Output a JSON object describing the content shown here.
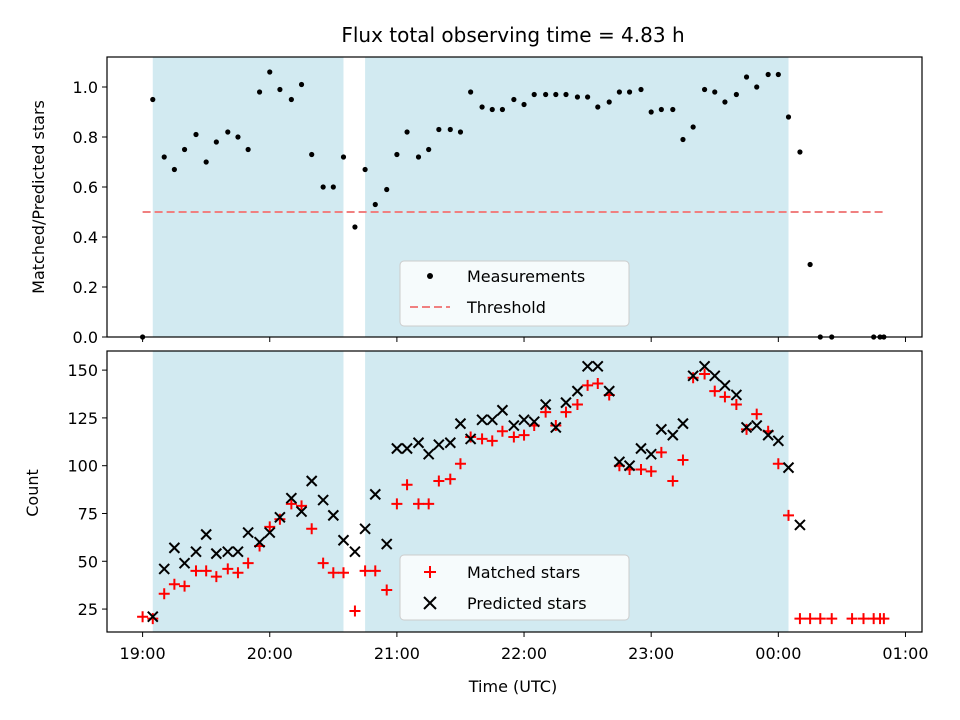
{
  "chart_data": {
    "title": "Flux total observing time = 4.83 h",
    "xlabel": "Time (UTC)",
    "x_unit": "hours since 19:00 UTC",
    "x_range": [
      -0.28,
      6.13
    ],
    "x_ticks": [
      {
        "value": 0,
        "label": "19:00"
      },
      {
        "value": 1,
        "label": "20:00"
      },
      {
        "value": 2,
        "label": "21:00"
      },
      {
        "value": 3,
        "label": "22:00"
      },
      {
        "value": 4,
        "label": "23:00"
      },
      {
        "value": 5,
        "label": "00:00"
      },
      {
        "value": 6,
        "label": "01:00"
      }
    ],
    "observing_spans": [
      [
        0.08,
        1.58
      ],
      [
        1.75,
        5.08
      ]
    ],
    "top": {
      "type": "scatter",
      "ylabel": "Matched/Predicted stars",
      "ylim": [
        0,
        1.12
      ],
      "yticks": [
        "0.0",
        "0.2",
        "0.4",
        "0.6",
        "0.8",
        "1.0"
      ],
      "threshold": {
        "name": "Threshold",
        "value": 0.5,
        "x_range": [
          0,
          5.83
        ]
      },
      "measurements": {
        "name": "Measurements",
        "x": [
          0,
          0.08,
          0.17,
          0.25,
          0.33,
          0.42,
          0.5,
          0.58,
          0.67,
          0.75,
          0.83,
          0.92,
          1.0,
          1.08,
          1.17,
          1.25,
          1.33,
          1.42,
          1.5,
          1.58,
          1.67,
          1.75,
          1.83,
          1.92,
          2.0,
          2.08,
          2.17,
          2.25,
          2.33,
          2.42,
          2.5,
          2.58,
          2.67,
          2.75,
          2.83,
          2.92,
          3.0,
          3.08,
          3.17,
          3.25,
          3.33,
          3.42,
          3.5,
          3.58,
          3.67,
          3.75,
          3.83,
          3.92,
          4.0,
          4.08,
          4.17,
          4.25,
          4.33,
          4.42,
          4.5,
          4.58,
          4.67,
          4.75,
          4.83,
          4.92,
          5.0,
          5.08,
          5.17,
          5.25,
          5.33,
          5.42,
          5.75,
          5.8,
          5.83
        ],
        "y": [
          0.0,
          0.95,
          0.72,
          0.67,
          0.75,
          0.81,
          0.7,
          0.78,
          0.82,
          0.8,
          0.75,
          0.98,
          1.06,
          0.99,
          0.95,
          1.01,
          0.73,
          0.6,
          0.6,
          0.72,
          0.44,
          0.67,
          0.53,
          0.59,
          0.73,
          0.82,
          0.72,
          0.75,
          0.83,
          0.83,
          0.82,
          0.98,
          0.92,
          0.91,
          0.91,
          0.95,
          0.93,
          0.97,
          0.97,
          0.97,
          0.97,
          0.96,
          0.96,
          0.92,
          0.94,
          0.98,
          0.98,
          0.99,
          0.9,
          0.91,
          0.91,
          0.79,
          0.84,
          0.99,
          0.98,
          0.94,
          0.97,
          1.04,
          1.0,
          1.05,
          1.05,
          0.88,
          0.74,
          0.29,
          0.0,
          0.0,
          0.0,
          0.0,
          0.0
        ]
      },
      "legend": {
        "placement": "lower-center",
        "entries": [
          "Measurements",
          "Threshold"
        ]
      }
    },
    "bottom": {
      "type": "scatter",
      "ylabel": "Count",
      "ylim": [
        13,
        160
      ],
      "yticks": [
        "25",
        "50",
        "75",
        "100",
        "125",
        "150"
      ],
      "matched": {
        "name": "Matched stars",
        "x": [
          0,
          0.08,
          0.17,
          0.25,
          0.33,
          0.42,
          0.5,
          0.58,
          0.67,
          0.75,
          0.83,
          0.92,
          1.0,
          1.08,
          1.17,
          1.25,
          1.33,
          1.42,
          1.5,
          1.58,
          1.67,
          1.75,
          1.83,
          1.92,
          2.0,
          2.08,
          2.17,
          2.25,
          2.33,
          2.42,
          2.5,
          2.58,
          2.67,
          2.75,
          2.83,
          2.92,
          3.0,
          3.08,
          3.17,
          3.25,
          3.33,
          3.42,
          3.5,
          3.58,
          3.67,
          3.75,
          3.83,
          3.92,
          4.0,
          4.08,
          4.17,
          4.25,
          4.33,
          4.42,
          4.5,
          4.58,
          4.67,
          4.75,
          4.83,
          4.92,
          5.0,
          5.08,
          5.17,
          5.25,
          5.33,
          5.42,
          5.58,
          5.67,
          5.75,
          5.8,
          5.83
        ],
        "y": [
          21,
          20,
          33,
          38,
          37,
          45,
          45,
          42,
          46,
          44,
          49,
          58,
          68,
          72,
          80,
          79,
          67,
          49,
          44,
          44,
          24,
          45,
          45,
          35,
          80,
          90,
          80,
          80,
          92,
          93,
          101,
          115,
          114,
          113,
          118,
          115,
          116,
          121,
          128,
          121,
          128,
          132,
          142,
          143,
          137,
          100,
          98,
          98,
          97,
          107,
          92,
          103,
          146,
          148,
          139,
          136,
          132,
          119,
          127,
          118,
          101,
          74,
          20,
          20,
          20,
          20,
          20,
          20,
          20,
          20,
          20
        ]
      },
      "predicted": {
        "name": "Predicted stars",
        "x": [
          0.08,
          0.17,
          0.25,
          0.33,
          0.42,
          0.5,
          0.58,
          0.67,
          0.75,
          0.83,
          0.92,
          1.0,
          1.08,
          1.17,
          1.25,
          1.33,
          1.42,
          1.5,
          1.58,
          1.67,
          1.75,
          1.83,
          1.92,
          2.0,
          2.08,
          2.17,
          2.25,
          2.33,
          2.42,
          2.5,
          2.58,
          2.67,
          2.75,
          2.83,
          2.92,
          3.0,
          3.08,
          3.17,
          3.25,
          3.33,
          3.42,
          3.5,
          3.58,
          3.67,
          3.75,
          3.83,
          3.92,
          4.0,
          4.08,
          4.17,
          4.25,
          4.33,
          4.42,
          4.5,
          4.58,
          4.67,
          4.75,
          4.83,
          4.92,
          5.0,
          5.08,
          5.17
        ],
        "y": [
          21,
          46,
          57,
          49,
          55,
          64,
          54,
          55,
          55,
          65,
          60,
          65,
          73,
          83,
          76,
          92,
          82,
          74,
          61,
          55,
          67,
          85,
          59,
          109,
          109,
          112,
          106,
          111,
          112,
          122,
          114,
          124,
          124,
          129,
          121,
          124,
          123,
          132,
          120,
          133,
          139,
          152,
          152,
          139,
          102,
          100,
          109,
          106,
          119,
          116,
          122,
          147,
          152,
          147,
          142,
          137,
          120,
          121,
          116,
          113,
          99,
          69
        ]
      },
      "legend": {
        "placement": "lower-center",
        "entries": [
          "Matched stars",
          "Predicted stars"
        ]
      }
    },
    "colors": {
      "span": "#add8e6",
      "measurement": "#000000",
      "threshold": "#f08080",
      "matched": "#ff0000",
      "predicted": "#000000"
    }
  }
}
